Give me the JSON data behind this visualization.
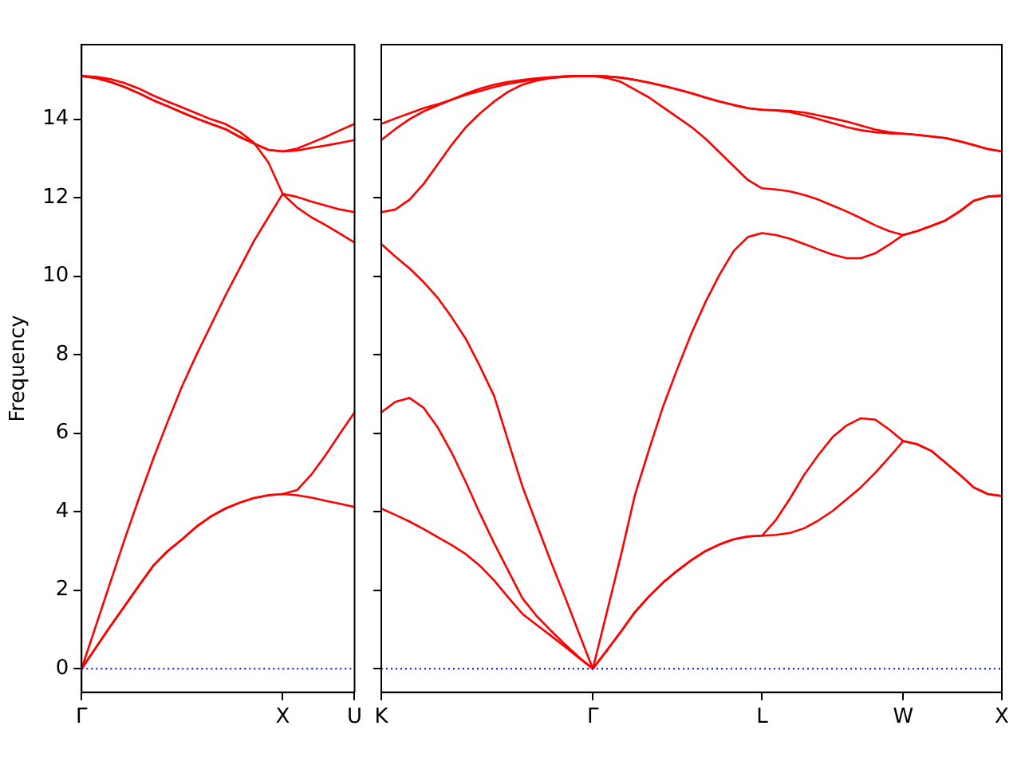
{
  "chart_data": [
    {
      "type": "line",
      "ylabel": "Frequency",
      "marker": "none",
      "grid": false,
      "categories": [
        "Γ",
        null,
        null,
        null,
        null,
        null,
        null,
        null,
        null,
        null,
        null,
        null,
        null,
        null,
        "X",
        null,
        null,
        null,
        null,
        "U"
      ],
      "ylim": [
        -0.6,
        15.9
      ],
      "yticks": [
        0,
        2,
        4,
        6,
        8,
        10,
        12,
        14
      ],
      "ref_lines": [
        {
          "axis": "y",
          "value": 0,
          "color": "#0000ff",
          "line_style": "dotted"
        }
      ],
      "series": [
        {
          "color": "#ff0000",
          "values": [
            0,
            0.54,
            1.08,
            1.6,
            2.12,
            2.63,
            3.0,
            3.3,
            3.62,
            3.88,
            4.08,
            4.23,
            4.35,
            4.42,
            4.45,
            4.42,
            4.36,
            4.28,
            4.2,
            4.12
          ]
        },
        {
          "color": "#ff0000",
          "values": [
            0,
            0.54,
            1.08,
            1.6,
            2.12,
            2.63,
            3.0,
            3.3,
            3.62,
            3.88,
            4.08,
            4.23,
            4.35,
            4.42,
            4.45,
            4.55,
            4.95,
            5.45,
            6.0,
            6.53
          ]
        },
        {
          "color": "#ff0000",
          "values": [
            0,
            1.1,
            2.2,
            3.3,
            4.35,
            5.36,
            6.3,
            7.2,
            8.0,
            8.75,
            9.5,
            10.2,
            10.9,
            11.5,
            12.1,
            11.75,
            11.5,
            11.3,
            11.08,
            10.86
          ]
        },
        {
          "color": "#ff0000",
          "values": [
            15.1,
            15.08,
            15.02,
            14.92,
            14.78,
            14.6,
            14.45,
            14.3,
            14.15,
            14.0,
            13.88,
            13.68,
            13.4,
            12.9,
            12.1,
            12.02,
            11.9,
            11.8,
            11.7,
            11.63
          ]
        },
        {
          "color": "#ff0000",
          "values": [
            15.1,
            15.05,
            14.95,
            14.82,
            14.66,
            14.48,
            14.33,
            14.17,
            14.02,
            13.88,
            13.75,
            13.55,
            13.38,
            13.22,
            13.18,
            13.25,
            13.4,
            13.55,
            13.72,
            13.88
          ]
        },
        {
          "color": "#ff0000",
          "values": [
            15.1,
            15.05,
            14.95,
            14.82,
            14.66,
            14.48,
            14.33,
            14.17,
            14.02,
            13.88,
            13.75,
            13.55,
            13.38,
            13.22,
            13.18,
            13.2,
            13.27,
            13.33,
            13.4,
            13.47
          ]
        }
      ]
    },
    {
      "type": "line",
      "marker": "none",
      "grid": false,
      "tick_labels": "x",
      "categories": [
        "K",
        null,
        null,
        null,
        null,
        null,
        null,
        null,
        null,
        null,
        null,
        null,
        null,
        null,
        null,
        "Γ",
        null,
        null,
        null,
        null,
        null,
        null,
        null,
        null,
        null,
        null,
        null,
        "L",
        null,
        null,
        null,
        null,
        null,
        null,
        null,
        null,
        null,
        "W",
        null,
        null,
        null,
        null,
        null,
        null,
        "X"
      ],
      "ylim": [
        -0.6,
        15.9
      ],
      "yticks": [
        0,
        2,
        4,
        6,
        8,
        10,
        12,
        14
      ],
      "ref_lines": [
        {
          "axis": "y",
          "value": 0,
          "color": "#0000ff",
          "line_style": "dotted"
        }
      ],
      "series": [
        {
          "color": "#ff0000",
          "values": [
            4.08,
            3.92,
            3.75,
            3.56,
            3.35,
            3.15,
            2.92,
            2.62,
            2.25,
            1.82,
            1.4,
            1.12,
            0.85,
            0.57,
            0.28,
            0,
            0.47,
            0.95,
            1.45,
            1.85,
            2.2,
            2.5,
            2.77,
            3.0,
            3.17,
            3.3,
            3.37,
            3.39,
            3.41,
            3.46,
            3.58,
            3.78,
            4.02,
            4.32,
            4.62,
            4.98,
            5.38,
            5.8,
            5.72,
            5.55,
            5.25,
            4.95,
            4.62,
            4.45,
            4.4
          ]
        },
        {
          "color": "#ff0000",
          "values": [
            6.53,
            6.8,
            6.9,
            6.65,
            6.15,
            5.5,
            4.75,
            3.95,
            3.2,
            2.5,
            1.8,
            1.35,
            0.98,
            0.63,
            0.3,
            0,
            0.47,
            0.95,
            1.45,
            1.85,
            2.2,
            2.5,
            2.77,
            3.0,
            3.17,
            3.3,
            3.37,
            3.39,
            3.8,
            4.35,
            4.95,
            5.45,
            5.9,
            6.2,
            6.38,
            6.35,
            6.1,
            5.8,
            5.72,
            5.55,
            5.25,
            4.95,
            4.62,
            4.45,
            4.4
          ]
        },
        {
          "color": "#ff0000",
          "values": [
            10.82,
            10.5,
            10.2,
            9.85,
            9.45,
            8.95,
            8.4,
            7.7,
            6.95,
            5.8,
            4.65,
            3.7,
            2.75,
            1.85,
            0.92,
            0,
            1.45,
            2.9,
            4.45,
            5.6,
            6.7,
            7.65,
            8.55,
            9.35,
            10.05,
            10.65,
            11.0,
            11.1,
            11.05,
            10.95,
            10.82,
            10.68,
            10.55,
            10.46,
            10.46,
            10.58,
            10.8,
            11.05,
            11.15,
            11.28,
            11.42,
            11.65,
            11.92,
            12.03,
            12.05
          ]
        },
        {
          "color": "#ff0000",
          "values": [
            11.63,
            11.7,
            11.95,
            12.35,
            12.85,
            13.35,
            13.8,
            14.15,
            14.45,
            14.7,
            14.88,
            14.98,
            15.05,
            15.08,
            15.1,
            15.1,
            15.05,
            14.95,
            14.75,
            14.55,
            14.3,
            14.05,
            13.8,
            13.5,
            13.15,
            12.8,
            12.45,
            12.24,
            12.21,
            12.16,
            12.07,
            11.95,
            11.8,
            11.65,
            11.48,
            11.3,
            11.15,
            11.05,
            11.15,
            11.28,
            11.42,
            11.65,
            11.92,
            12.03,
            12.05
          ]
        },
        {
          "color": "#ff0000",
          "values": [
            13.47,
            13.75,
            14.0,
            14.2,
            14.35,
            14.5,
            14.65,
            14.78,
            14.88,
            14.95,
            15.0,
            15.04,
            15.07,
            15.09,
            15.1,
            15.1,
            15.09,
            15.06,
            15.0,
            14.93,
            14.85,
            14.76,
            14.66,
            14.55,
            14.45,
            14.36,
            14.28,
            14.24,
            14.22,
            14.18,
            14.1,
            14.0,
            13.9,
            13.8,
            13.72,
            13.67,
            13.64,
            13.63,
            13.6,
            13.56,
            13.52,
            13.44,
            13.34,
            13.24,
            13.18
          ]
        },
        {
          "color": "#ff0000",
          "values": [
            13.88,
            14.02,
            14.15,
            14.28,
            14.38,
            14.5,
            14.62,
            14.72,
            14.82,
            14.9,
            14.96,
            15.02,
            15.06,
            15.09,
            15.1,
            15.1,
            15.09,
            15.06,
            15.0,
            14.93,
            14.85,
            14.76,
            14.66,
            14.55,
            14.45,
            14.36,
            14.28,
            14.24,
            14.23,
            14.21,
            14.17,
            14.1,
            14.02,
            13.94,
            13.84,
            13.74,
            13.67,
            13.63,
            13.6,
            13.56,
            13.52,
            13.44,
            13.34,
            13.24,
            13.18
          ]
        }
      ]
    }
  ]
}
